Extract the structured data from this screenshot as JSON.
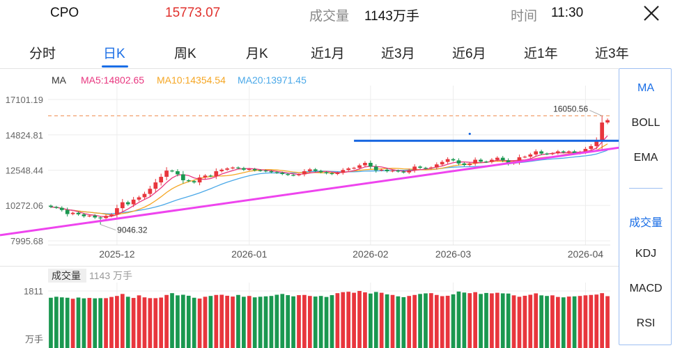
{
  "header": {
    "symbol": "CPO",
    "price": "15773.07",
    "volume_label": "成交量",
    "volume_value": "1143万手",
    "time_label": "时间",
    "time_value": "11:30",
    "close_icon": "close-icon"
  },
  "tabs": [
    {
      "label": "分时",
      "active": false
    },
    {
      "label": "日K",
      "active": true
    },
    {
      "label": "周K",
      "active": false
    },
    {
      "label": "月K",
      "active": false
    },
    {
      "label": "近1月",
      "active": false
    },
    {
      "label": "近3月",
      "active": false
    },
    {
      "label": "近6月",
      "active": false
    },
    {
      "label": "近1年",
      "active": false
    },
    {
      "label": "近3年",
      "active": false
    }
  ],
  "side_panel": {
    "indicators": [
      {
        "label": "MA",
        "active": true
      },
      {
        "label": "BOLL",
        "active": false
      },
      {
        "label": "EMA",
        "active": false
      }
    ],
    "sub_indicators": [
      {
        "label": "成交量",
        "active": true
      },
      {
        "label": "KDJ",
        "active": false
      },
      {
        "label": "MACD",
        "active": false
      },
      {
        "label": "RSI",
        "active": false
      }
    ]
  },
  "chart_data": {
    "type": "candlestick",
    "legend": {
      "name": "MA",
      "ma5": "MA5:14802.65",
      "ma10": "MA10:14354.54",
      "ma20": "MA20:13971.45"
    },
    "colors": {
      "up": "#e8363d",
      "down": "#1a9850",
      "ma5": "#e8367f",
      "ma10": "#f5a623",
      "ma20": "#4aa8e8",
      "trend_line": "#ee44ee",
      "resistance_line": "#1565e0",
      "ref_line": "#f08a4b"
    },
    "y_axis": {
      "ticks": [
        "17101.19",
        "14824.81",
        "12548.44",
        "10272.06",
        "7995.68"
      ],
      "range": [
        7995.68,
        17101.19
      ]
    },
    "x_axis": {
      "ticks": [
        {
          "label": "2025-12",
          "index": 12
        },
        {
          "label": "2026-01",
          "index": 36
        },
        {
          "label": "2026-02",
          "index": 58
        },
        {
          "label": "2026-03",
          "index": 73
        },
        {
          "label": "2026-04",
          "index": 97
        }
      ]
    },
    "annotations": {
      "high_value": 16050.56,
      "high_label": "16050.56",
      "low_value": 9046.32,
      "low_label": "9046.32"
    },
    "reference_line": 16050.56,
    "resistance_line": {
      "value": 14442,
      "from_index": 55,
      "to_index": 120
    },
    "trend_line": {
      "x0": -8,
      "y0": 8420,
      "x1": 120,
      "y1": 14850
    },
    "dot": {
      "index": 76,
      "value": 14890
    },
    "closes": [
      10180,
      10120,
      9980,
      9720,
      9800,
      9700,
      9580,
      9620,
      9500,
      9460,
      9600,
      9700,
      10100,
      10480,
      10350,
      10650,
      10800,
      11020,
      11350,
      11760,
      12120,
      12520,
      12480,
      12280,
      11900,
      11840,
      11760,
      12080,
      12200,
      12160,
      12480,
      12580,
      12660,
      12720,
      12680,
      12580,
      12620,
      12540,
      12520,
      12480,
      12420,
      12380,
      12300,
      12240,
      12220,
      12280,
      12480,
      12600,
      12500,
      12420,
      12350,
      12300,
      12380,
      12560,
      12660,
      12700,
      12860,
      13020,
      12780,
      12540,
      12580,
      12480,
      12520,
      12460,
      12400,
      12540,
      12780,
      12700,
      12660,
      12720,
      12920,
      13080,
      13260,
      13180,
      12980,
      12880,
      12980,
      13220,
      13100,
      13080,
      13220,
      13350,
      13180,
      12980,
      13080,
      13380,
      13420,
      13560,
      13760,
      13620,
      13580,
      13640,
      13760,
      13700,
      13760,
      13640,
      13720,
      13920,
      14100,
      14460,
      15620,
      15773
    ],
    "volume": {
      "label": "成交量",
      "value": "1143 万手",
      "max_label": "1811",
      "unit": "万手",
      "max": 1811,
      "values": [
        1470,
        1520,
        1490,
        1470,
        1420,
        1480,
        1440,
        1460,
        1440,
        1450,
        1450,
        1510,
        1560,
        1660,
        1520,
        1460,
        1590,
        1490,
        1450,
        1450,
        1480,
        1610,
        1700,
        1590,
        1620,
        1570,
        1470,
        1430,
        1520,
        1560,
        1610,
        1620,
        1570,
        1530,
        1610,
        1520,
        1560,
        1490,
        1520,
        1540,
        1560,
        1620,
        1660,
        1600,
        1540,
        1600,
        1610,
        1560,
        1530,
        1560,
        1510,
        1600,
        1700,
        1750,
        1770,
        1720,
        1810,
        1740,
        1680,
        1760,
        1720,
        1640,
        1610,
        1540,
        1500,
        1560,
        1610,
        1660,
        1690,
        1700,
        1610,
        1550,
        1570,
        1640,
        1780,
        1730,
        1700,
        1750,
        1660,
        1710,
        1690,
        1720,
        1690,
        1680,
        1590,
        1520,
        1570,
        1620,
        1690,
        1590,
        1560,
        1590,
        1510,
        1490,
        1530,
        1540,
        1560,
        1590,
        1610,
        1630,
        1700,
        1550
      ]
    }
  }
}
